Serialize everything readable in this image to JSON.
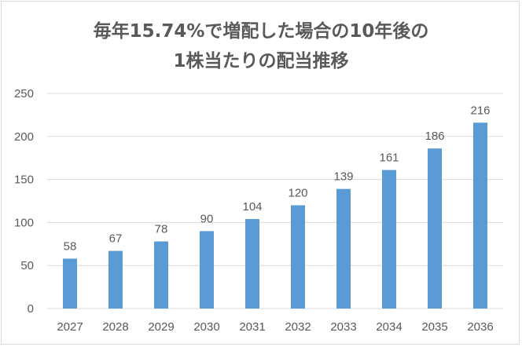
{
  "chart_data": {
    "type": "bar",
    "title_lines": [
      "毎年15.74%で増配した場合の10年後の",
      "1株当たりの配当推移"
    ],
    "categories": [
      "2027",
      "2028",
      "2029",
      "2030",
      "2031",
      "2032",
      "2033",
      "2034",
      "2035",
      "2036"
    ],
    "values": [
      58,
      67,
      78,
      90,
      104,
      120,
      139,
      161,
      186,
      216
    ],
    "ylim": [
      0,
      250
    ],
    "yticks": [
      0,
      50,
      100,
      150,
      200,
      250
    ],
    "xlabel": "",
    "ylabel": "",
    "grid": true,
    "data_labels": true,
    "bar_color": "#5b9bd5",
    "grid_color": "#d9d9d9"
  }
}
